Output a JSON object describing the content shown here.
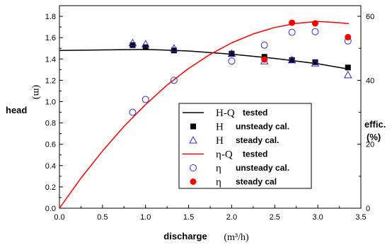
{
  "chart_data": {
    "type": "line",
    "xlabel": "discharge",
    "xlabel_unit": "(m³/h)",
    "ylabel": "head",
    "ylabel_unit": "(m)",
    "y2label": "effic.",
    "y2label_unit": "(%)",
    "xlim": [
      0.0,
      3.5
    ],
    "ylim": [
      0.0,
      1.9
    ],
    "y2lim": [
      0,
      63.33
    ],
    "x_ticks": [
      "0.0",
      "0.5",
      "1.0",
      "1.5",
      "2.0",
      "2.5",
      "3.0",
      "3.5"
    ],
    "y_ticks": [
      "0.0",
      "0.2",
      "0.4",
      "0.6",
      "0.8",
      "1.0",
      "1.2",
      "1.4",
      "1.6",
      "1.8"
    ],
    "y2_ticks": [
      "0",
      "20",
      "40",
      "60"
    ],
    "grid": false,
    "legend_position": "center-right",
    "legend": [
      {
        "symbol": "H-Q",
        "text": "tested",
        "marker": "line",
        "color": "#000000"
      },
      {
        "symbol": "H",
        "text": "unsteady cal.",
        "marker": "square-filled",
        "color": "#000000"
      },
      {
        "symbol": "H",
        "text": "steady cal.",
        "marker": "triangle-open",
        "color": "#2a2ad0"
      },
      {
        "symbol": "η-Q",
        "text": "tested",
        "marker": "line",
        "color": "#ff0000"
      },
      {
        "symbol": "η",
        "text": "unsteady cal.",
        "marker": "circle-open",
        "color": "#2a2ad0"
      },
      {
        "symbol": "η",
        "text": "steady cal",
        "marker": "circle-filled",
        "color": "#ff0000"
      }
    ],
    "series": [
      {
        "axis": "left",
        "marker": "line",
        "color": "#000000",
        "x": [
          0.0,
          0.5,
          1.0,
          1.5,
          2.0,
          2.5,
          3.0,
          3.36
        ],
        "y": [
          1.48,
          1.485,
          1.49,
          1.475,
          1.445,
          1.405,
          1.355,
          1.305
        ]
      },
      {
        "axis": "left",
        "marker": "square-filled",
        "color": "#000000",
        "x": [
          0.85,
          1.0,
          1.33,
          2.0,
          2.38,
          2.7,
          2.97,
          3.35
        ],
        "y": [
          1.53,
          1.51,
          1.48,
          1.45,
          1.42,
          1.39,
          1.37,
          1.32
        ]
      },
      {
        "axis": "left",
        "marker": "triangle-open",
        "color": "#2a2ad0",
        "x": [
          0.85,
          1.0,
          1.33,
          2.0,
          2.38,
          2.7,
          2.97,
          3.35
        ],
        "y": [
          1.55,
          1.54,
          1.5,
          1.45,
          1.38,
          1.39,
          1.36,
          1.25
        ]
      },
      {
        "axis": "right",
        "marker": "line",
        "color": "#ff0000",
        "x": [
          0.0,
          0.25,
          0.5,
          0.75,
          1.0,
          1.25,
          1.5,
          1.75,
          2.0,
          2.25,
          2.5,
          2.75,
          3.0,
          3.25,
          3.36
        ],
        "y": [
          0.0,
          9.4,
          17.9,
          25.6,
          32.4,
          38.5,
          43.7,
          48.1,
          51.7,
          54.5,
          56.5,
          57.8,
          58.4,
          58.0,
          57.7
        ]
      },
      {
        "axis": "right",
        "marker": "circle-open",
        "color": "#2a2ad0",
        "x": [
          0.85,
          1.0,
          1.33,
          2.0,
          2.38,
          2.7,
          2.97,
          3.35
        ],
        "y": [
          30.0,
          34.0,
          40.0,
          46.0,
          51.0,
          55.0,
          55.2,
          52.3
        ]
      },
      {
        "axis": "right",
        "marker": "circle-filled",
        "color": "#ff0000",
        "x": [
          2.38,
          2.7,
          2.97,
          3.35
        ],
        "y": [
          46.5,
          58.0,
          57.8,
          53.5
        ]
      }
    ]
  }
}
